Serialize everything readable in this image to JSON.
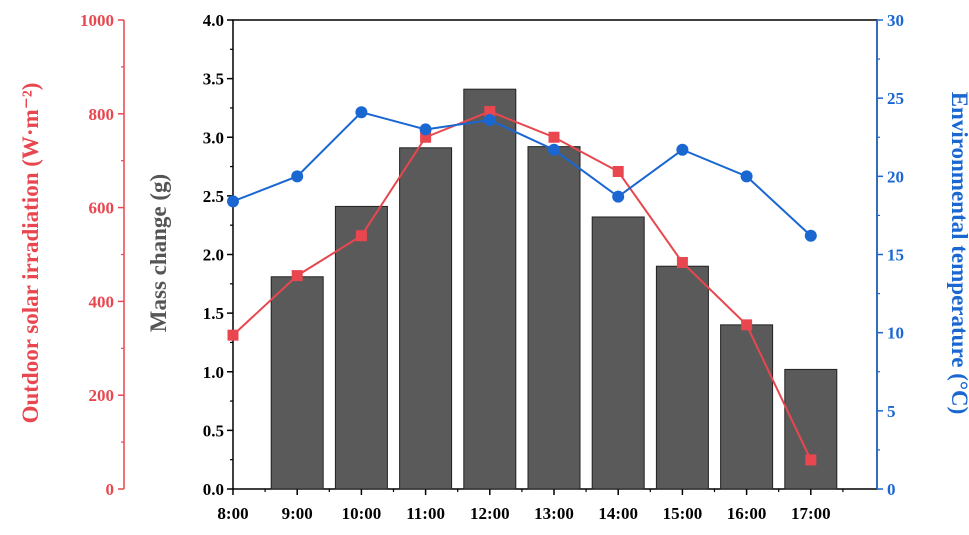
{
  "colors": {
    "left_axis": "#e8474f",
    "right_axis": "#1a67d2",
    "mass_axis": "#555555",
    "bars": "#5a5a5a",
    "frame": "#000000"
  },
  "chart_data": {
    "type": "bar",
    "categories": [
      "8:00",
      "9:00",
      "10:00",
      "11:00",
      "12:00",
      "13:00",
      "14:00",
      "15:00",
      "16:00",
      "17:00"
    ],
    "axes": {
      "irradiation": {
        "label": "Outdoor solar irradiation (W·m⁻²)",
        "ylim": [
          0,
          1000
        ],
        "ticks": [
          "0",
          "200",
          "400",
          "600",
          "800",
          "1000"
        ]
      },
      "mass": {
        "label": "Mass change (g)",
        "ylim": [
          0,
          4.0
        ],
        "ticks": [
          "0.0",
          "0.5",
          "1.0",
          "1.5",
          "2.0",
          "2.5",
          "3.0",
          "3.5",
          "4.0"
        ]
      },
      "temperature": {
        "label": "Environmental temperature (°C)",
        "ylim": [
          0,
          30
        ],
        "ticks": [
          "0",
          "5",
          "10",
          "15",
          "20",
          "25",
          "30"
        ]
      }
    },
    "series": [
      {
        "type": "bar",
        "axis": "mass",
        "values": [
          null,
          1.81,
          2.41,
          2.91,
          3.41,
          2.92,
          2.32,
          1.9,
          1.4,
          1.02
        ]
      },
      {
        "type": "line",
        "marker": "square",
        "axis": "irradiation",
        "values": [
          328,
          455,
          540,
          750,
          805,
          750,
          677,
          483,
          350,
          62
        ]
      },
      {
        "type": "line",
        "marker": "circle",
        "axis": "temperature",
        "values": [
          18.4,
          20.0,
          24.1,
          23.0,
          23.6,
          21.7,
          18.7,
          21.7,
          20.0,
          16.2
        ]
      }
    ]
  }
}
